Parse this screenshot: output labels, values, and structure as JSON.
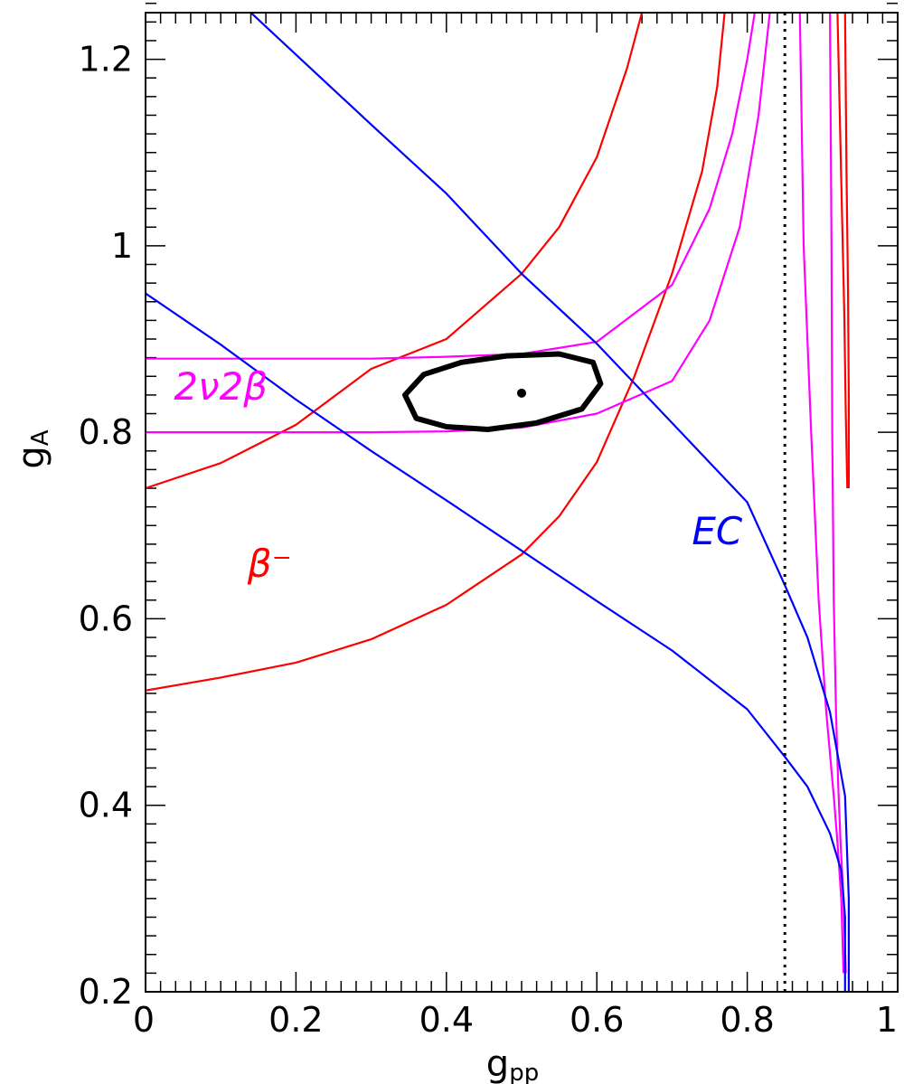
{
  "chart_data": {
    "type": "line",
    "title": "",
    "xlabel": "g",
    "xlabel_sub": "pp",
    "ylabel": "g",
    "ylabel_sub": "A",
    "xlim": [
      0,
      1
    ],
    "ylim": [
      0.2,
      1.25
    ],
    "x_ticks": [
      {
        "value": 0,
        "label": "0"
      },
      {
        "value": 0.2,
        "label": "0.2"
      },
      {
        "value": 0.4,
        "label": "0.4"
      },
      {
        "value": 0.6,
        "label": "0.6"
      },
      {
        "value": 0.8,
        "label": "0.8"
      },
      {
        "value": 1,
        "label": "1"
      }
    ],
    "y_ticks": [
      {
        "value": 0.2,
        "label": "0.2"
      },
      {
        "value": 0.4,
        "label": "0.4"
      },
      {
        "value": 0.6,
        "label": "0.6"
      },
      {
        "value": 0.8,
        "label": "0.8"
      },
      {
        "value": 1,
        "label": "1"
      },
      {
        "value": 1.2,
        "label": "1.2"
      }
    ],
    "grid": false,
    "colors": {
      "beta_minus": "#ff0000",
      "two_nu_two_beta": "#ff00ff",
      "ec": "#0000ff",
      "fit": "#000000"
    },
    "annotations": [
      {
        "text": "2ν2β",
        "x": 0.1,
        "y": 0.835,
        "color": "#ff00ff"
      },
      {
        "text": "EC",
        "x": 0.76,
        "y": 0.68,
        "color": "#0000ff"
      },
      {
        "text": "β⁻",
        "x": 0.165,
        "y": 0.645,
        "color": "#ff0000"
      }
    ],
    "vertical_line": {
      "x": 0.85,
      "style": "dotted"
    },
    "best_fit_point": {
      "x": 0.5,
      "y": 0.842
    },
    "confidence_contour": {
      "center_x": 0.475,
      "center_y": 0.843,
      "half_width": 0.13,
      "half_height": 0.039,
      "points": [
        [
          0.345,
          0.84
        ],
        [
          0.36,
          0.815
        ],
        [
          0.4,
          0.806
        ],
        [
          0.455,
          0.803
        ],
        [
          0.52,
          0.81
        ],
        [
          0.58,
          0.825
        ],
        [
          0.605,
          0.852
        ],
        [
          0.595,
          0.875
        ],
        [
          0.55,
          0.884
        ],
        [
          0.48,
          0.882
        ],
        [
          0.42,
          0.875
        ],
        [
          0.37,
          0.862
        ],
        [
          0.345,
          0.84
        ]
      ]
    },
    "series": [
      {
        "group": "beta_minus",
        "points": [
          [
            0,
            0.74
          ],
          [
            0.1,
            0.767
          ],
          [
            0.2,
            0.808
          ],
          [
            0.3,
            0.868
          ],
          [
            0.4,
            0.9
          ],
          [
            0.5,
            0.97
          ],
          [
            0.55,
            1.02
          ],
          [
            0.6,
            1.095
          ],
          [
            0.64,
            1.19
          ],
          [
            0.66,
            1.25
          ]
        ]
      },
      {
        "group": "beta_minus",
        "points": [
          [
            0,
            0.523
          ],
          [
            0.1,
            0.537
          ],
          [
            0.2,
            0.553
          ],
          [
            0.3,
            0.578
          ],
          [
            0.4,
            0.615
          ],
          [
            0.5,
            0.669
          ],
          [
            0.55,
            0.71
          ],
          [
            0.6,
            0.768
          ],
          [
            0.65,
            0.86
          ],
          [
            0.7,
            0.97
          ],
          [
            0.74,
            1.08
          ],
          [
            0.76,
            1.17
          ],
          [
            0.77,
            1.25
          ]
        ]
      },
      {
        "group": "beta_minus",
        "points": [
          [
            0.92,
            1.25
          ],
          [
            0.925,
            1.07
          ],
          [
            0.929,
            0.93
          ],
          [
            0.931,
            0.82
          ],
          [
            0.933,
            0.74
          ]
        ]
      },
      {
        "group": "beta_minus",
        "points": [
          [
            0.935,
            0.74
          ],
          [
            0.935,
            0.84
          ],
          [
            0.934,
            0.95
          ],
          [
            0.932,
            1.08
          ],
          [
            0.93,
            1.25
          ]
        ]
      },
      {
        "group": "two_nu_two_beta",
        "points": [
          [
            0,
            0.879
          ],
          [
            0.1,
            0.879
          ],
          [
            0.2,
            0.879
          ],
          [
            0.3,
            0.879
          ],
          [
            0.4,
            0.881
          ],
          [
            0.5,
            0.884
          ],
          [
            0.6,
            0.897
          ],
          [
            0.7,
            0.958
          ],
          [
            0.75,
            1.04
          ],
          [
            0.78,
            1.12
          ],
          [
            0.8,
            1.2
          ],
          [
            0.81,
            1.25
          ]
        ]
      },
      {
        "group": "two_nu_two_beta",
        "points": [
          [
            0,
            0.8
          ],
          [
            0.1,
            0.8
          ],
          [
            0.2,
            0.8
          ],
          [
            0.3,
            0.8
          ],
          [
            0.4,
            0.801
          ],
          [
            0.5,
            0.805
          ],
          [
            0.6,
            0.82
          ],
          [
            0.7,
            0.855
          ],
          [
            0.75,
            0.92
          ],
          [
            0.79,
            1.02
          ],
          [
            0.815,
            1.14
          ],
          [
            0.83,
            1.25
          ]
        ]
      },
      {
        "group": "two_nu_two_beta",
        "points": [
          [
            0.87,
            1.25
          ],
          [
            0.875,
            1.0
          ],
          [
            0.885,
            0.8
          ],
          [
            0.895,
            0.62
          ],
          [
            0.905,
            0.5
          ],
          [
            0.915,
            0.41
          ],
          [
            0.92,
            0.36
          ],
          [
            0.925,
            0.3
          ],
          [
            0.928,
            0.22
          ]
        ]
      },
      {
        "group": "two_nu_two_beta",
        "points": [
          [
            0.91,
            1.25
          ],
          [
            0.912,
            1.0
          ],
          [
            0.913,
            0.8
          ],
          [
            0.915,
            0.62
          ],
          [
            0.918,
            0.5
          ],
          [
            0.921,
            0.42
          ],
          [
            0.924,
            0.36
          ],
          [
            0.928,
            0.3
          ],
          [
            0.931,
            0.22
          ]
        ]
      },
      {
        "group": "ec",
        "points": [
          [
            0,
            0.949
          ],
          [
            0.1,
            0.894
          ],
          [
            0.2,
            0.835
          ],
          [
            0.3,
            0.78
          ],
          [
            0.4,
            0.727
          ],
          [
            0.5,
            0.673
          ],
          [
            0.6,
            0.619
          ],
          [
            0.7,
            0.566
          ],
          [
            0.8,
            0.503
          ],
          [
            0.85,
            0.452
          ],
          [
            0.88,
            0.42
          ],
          [
            0.91,
            0.37
          ],
          [
            0.925,
            0.33
          ],
          [
            0.93,
            0.28
          ],
          [
            0.93,
            0.2
          ]
        ]
      },
      {
        "group": "ec",
        "points": [
          [
            0.14,
            1.25
          ],
          [
            0.2,
            1.205
          ],
          [
            0.3,
            1.13
          ],
          [
            0.4,
            1.056
          ],
          [
            0.5,
            0.97
          ],
          [
            0.6,
            0.895
          ],
          [
            0.7,
            0.81
          ],
          [
            0.8,
            0.725
          ],
          [
            0.85,
            0.636
          ],
          [
            0.88,
            0.58
          ],
          [
            0.91,
            0.5
          ],
          [
            0.93,
            0.41
          ],
          [
            0.935,
            0.3
          ],
          [
            0.935,
            0.2
          ]
        ]
      }
    ]
  }
}
